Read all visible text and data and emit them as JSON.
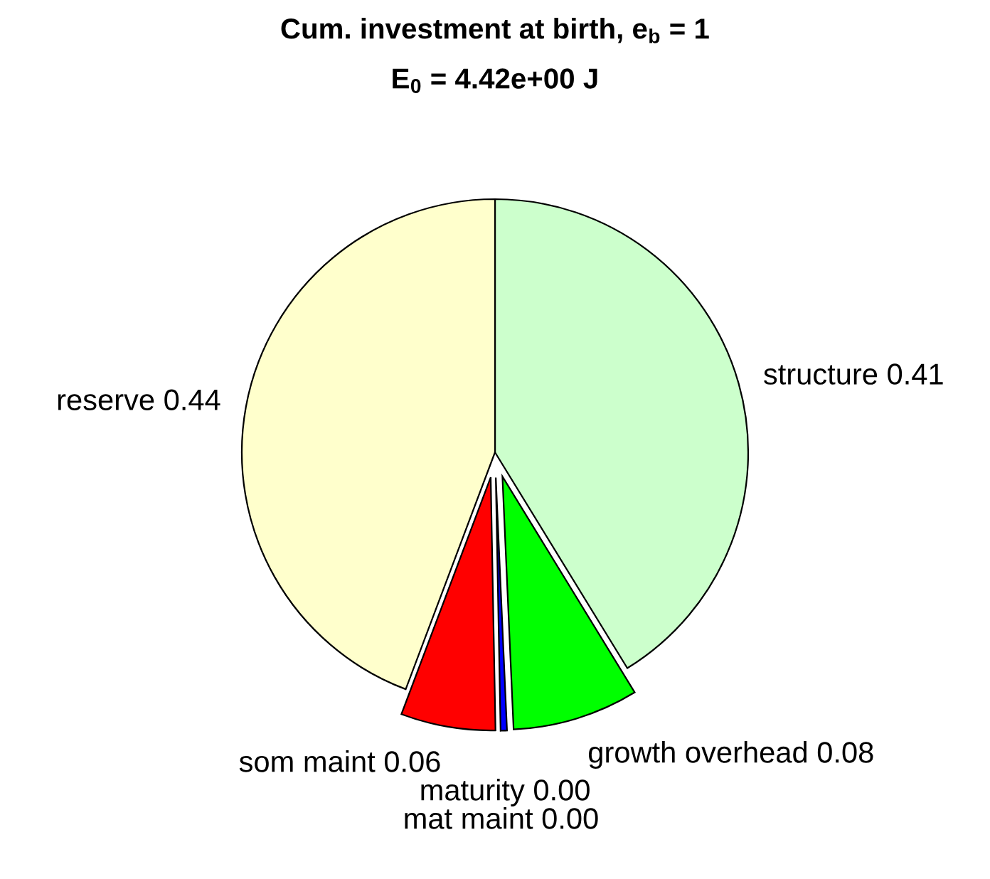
{
  "chart_data": {
    "type": "pie",
    "title": "Cum. investment at birth, e$_{b}$ = 1",
    "subtitle": "E$_{0}$ = 4.42e+00 J",
    "categories": [
      "structure",
      "growth overhead",
      "maturity",
      "mat maint",
      "som maint",
      "reserve"
    ],
    "values": [
      0.41,
      0.08,
      0.004,
      0,
      0.06,
      0.44
    ],
    "value_labels": [
      "0.41",
      "0.08",
      "0.00",
      "0.00",
      "0.06",
      "0.44"
    ],
    "colors": [
      "#ccffcc",
      "#00ff00",
      "#0000ff",
      null,
      "#ff0000",
      "#ffffcc"
    ]
  }
}
